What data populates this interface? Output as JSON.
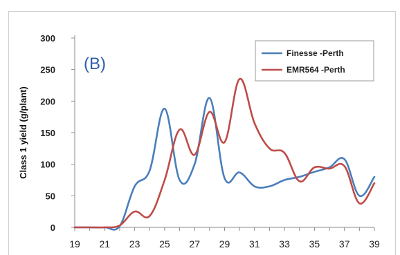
{
  "chart_data": {
    "type": "line",
    "title": "",
    "annotation": "(B)",
    "xlabel": "",
    "ylabel": "Class 1 yield (g/plant)",
    "ylim": [
      0,
      300
    ],
    "xlim": [
      19,
      39
    ],
    "yticks": [
      0,
      50,
      100,
      150,
      200,
      250,
      300
    ],
    "xticks": [
      19,
      21,
      23,
      25,
      27,
      29,
      31,
      33,
      35,
      37,
      39
    ],
    "grid": false,
    "legend_position": "top-right",
    "series": [
      {
        "name": "Finesse -Perth",
        "color": "#4a7ebb",
        "points": [
          [
            19,
            0
          ],
          [
            20,
            0
          ],
          [
            21,
            0
          ],
          [
            22,
            2
          ],
          [
            23,
            65
          ],
          [
            24,
            90
          ],
          [
            25,
            188
          ],
          [
            26,
            75
          ],
          [
            27,
            100
          ],
          [
            28,
            205
          ],
          [
            29,
            78
          ],
          [
            30,
            87
          ],
          [
            31,
            65
          ],
          [
            32,
            65
          ],
          [
            33,
            75
          ],
          [
            34,
            80
          ],
          [
            35,
            88
          ],
          [
            36,
            95
          ],
          [
            37,
            108
          ],
          [
            38,
            50
          ],
          [
            39,
            80
          ]
        ]
      },
      {
        "name": "EMR564 -Perth",
        "color": "#be4b48",
        "points": [
          [
            19,
            0
          ],
          [
            20,
            0
          ],
          [
            21,
            0
          ],
          [
            22,
            3
          ],
          [
            23,
            25
          ],
          [
            24,
            18
          ],
          [
            25,
            75
          ],
          [
            26,
            155
          ],
          [
            27,
            115
          ],
          [
            28,
            183
          ],
          [
            29,
            135
          ],
          [
            30,
            235
          ],
          [
            31,
            165
          ],
          [
            32,
            125
          ],
          [
            33,
            118
          ],
          [
            34,
            73
          ],
          [
            35,
            95
          ],
          [
            36,
            93
          ],
          [
            37,
            97
          ],
          [
            38,
            38
          ],
          [
            39,
            70
          ]
        ]
      }
    ]
  }
}
